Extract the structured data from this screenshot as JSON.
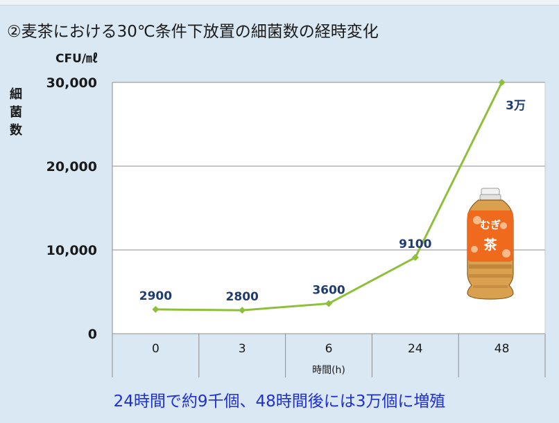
{
  "slide": {
    "title": "②麦茶における30℃条件下放置の細菌数の経時変化",
    "unit": "CFU/㎖",
    "conclusion": "24時間で約9千個、48時間後には3万個に増殖",
    "bottle_label": "むぎ茶"
  },
  "chart_data": {
    "type": "line",
    "title": "②麦茶における30℃条件下放置の細菌数の経時変化",
    "xlabel": "時間(h)",
    "ylabel": "細菌数",
    "unit": "CFU/㎖",
    "categories": [
      "0",
      "3",
      "6",
      "24",
      "48"
    ],
    "series": [
      {
        "values": [
          2900,
          2800,
          3600,
          9100,
          30000
        ],
        "color": "#8dbf3a"
      }
    ],
    "data_labels": [
      "2900",
      "2800",
      "3600",
      "9100",
      "3万"
    ],
    "yticks": [
      0,
      10000,
      20000,
      30000
    ],
    "ytick_labels": [
      "0",
      "10,000",
      "20,000",
      "30,000"
    ],
    "ylim": [
      0,
      30000
    ],
    "grid": true,
    "colors": {
      "line": "#8dbf3a",
      "plot_bg": "#ffffff",
      "slide_bg": "#d9e8f3",
      "conclusion": "#1f2fd6"
    }
  }
}
